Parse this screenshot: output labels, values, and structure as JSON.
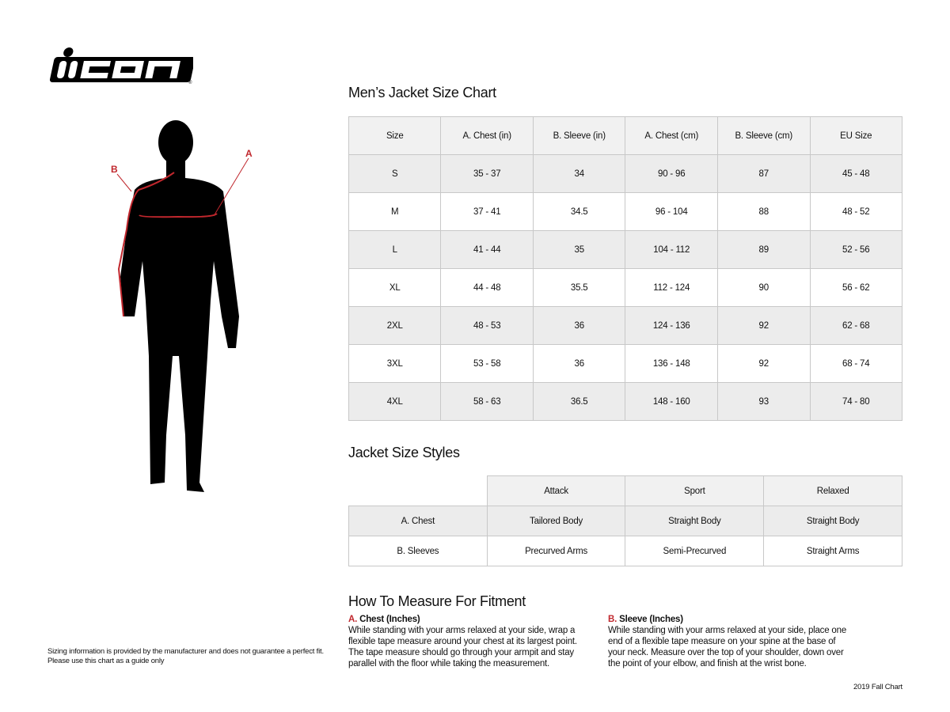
{
  "logo": {
    "text": "ICON",
    "mark": "®"
  },
  "figure": {
    "label_a": "A",
    "label_b": "B",
    "accent": "#c0272d"
  },
  "size_chart": {
    "title": "Men’s Jacket Size Chart",
    "headers": [
      "Size",
      "A. Chest (in)",
      "B. Sleeve (in)",
      "A. Chest (cm)",
      "B. Sleeve (cm)",
      "EU Size"
    ],
    "rows": [
      [
        "S",
        "35 - 37",
        "34",
        "90 - 96",
        "87",
        "45 - 48"
      ],
      [
        "M",
        "37 - 41",
        "34.5",
        "96 - 104",
        "88",
        "48 - 52"
      ],
      [
        "L",
        "41 - 44",
        "35",
        "104 - 112",
        "89",
        "52 - 56"
      ],
      [
        "XL",
        "44 - 48",
        "35.5",
        "112 - 124",
        "90",
        "56 - 62"
      ],
      [
        "2XL",
        "48 - 53",
        "36",
        "124 - 136",
        "92",
        "62 - 68"
      ],
      [
        "3XL",
        "53 - 58",
        "36",
        "136 - 148",
        "92",
        "68 - 74"
      ],
      [
        "4XL",
        "58 - 63",
        "36.5",
        "148 - 160",
        "93",
        "74 - 80"
      ]
    ]
  },
  "styles": {
    "title": "Jacket Size Styles",
    "headers": [
      "",
      "Attack",
      "Sport",
      "Relaxed"
    ],
    "rows": [
      [
        "A. Chest",
        "Tailored Body",
        "Straight Body",
        "Straight Body"
      ],
      [
        "B. Sleeves",
        "Precurved Arms",
        "Semi-Precurved",
        "Straight Arms"
      ]
    ]
  },
  "measure": {
    "title": "How To Measure For Fitment",
    "chest": {
      "letter": "A.",
      "title": "Chest (Inches)",
      "text": "While standing with your arms relaxed at your side, wrap a flexible tape measure around your chest at its largest point. The tape measure should go through your armpit and stay parallel with the floor while taking the measurement."
    },
    "sleeve": {
      "letter": "B.",
      "title": "Sleeve (Inches)",
      "text": "While standing with your arms relaxed at your side, place one end of a flexible tape measure on your spine at the base of your neck. Measure over the top of your shoulder, down over the point of your elbow, and finish at the wrist bone."
    }
  },
  "disclaimer": [
    "Sizing information is provided by the manufacturer and does not guarantee a perfect fit.",
    "Please use this chart as a guide only"
  ],
  "footer": "2019 Fall Chart"
}
